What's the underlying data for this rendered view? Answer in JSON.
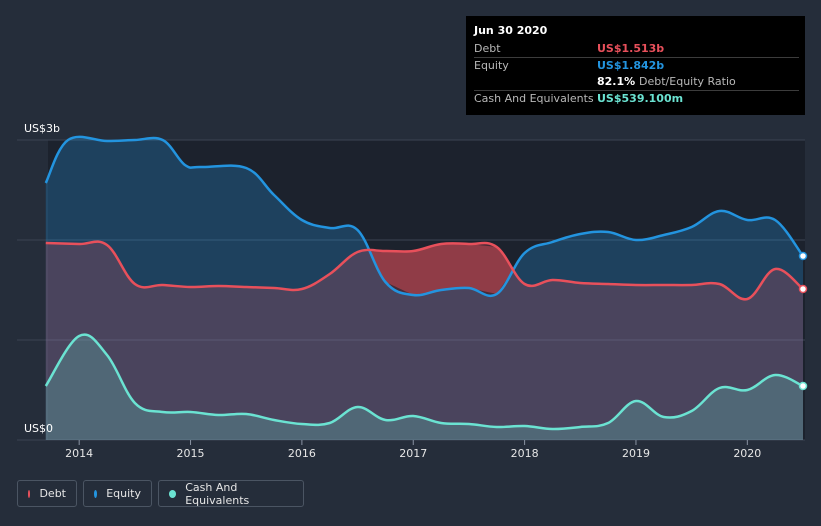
{
  "tooltip": {
    "date": "Jun 30 2020",
    "debt_label": "Debt",
    "debt_value": "US$1.513b",
    "equity_label": "Equity",
    "equity_value": "US$1.842b",
    "ratio_value": "82.1%",
    "ratio_label": "Debt/Equity Ratio",
    "cash_label": "Cash And Equivalents",
    "cash_value": "US$539.100m"
  },
  "legend": {
    "debt": "Debt",
    "equity": "Equity",
    "cash": "Cash And Equivalents"
  },
  "colors": {
    "debt": "#e8505b",
    "equity": "#2394df",
    "cash": "#6be3d2",
    "background": "#252d3a",
    "grid": "#3b4453"
  },
  "chart_data": {
    "type": "area",
    "ylabel_top": "US$3b",
    "ylabel_bottom": "US$0",
    "ylim": [
      0,
      3
    ],
    "y_unit": "US$ billions",
    "xlim": [
      2013.7,
      2020.5
    ],
    "x_ticks": [
      "2014",
      "2015",
      "2016",
      "2017",
      "2018",
      "2019",
      "2020"
    ],
    "x_tick_values": [
      2014,
      2015,
      2016,
      2017,
      2018,
      2019,
      2020
    ],
    "series": [
      {
        "name": "Equity",
        "x": [
          2013.7,
          2013.9,
          2014.25,
          2014.5,
          2014.75,
          2014.95,
          2015.1,
          2015.5,
          2015.75,
          2016.0,
          2016.25,
          2016.5,
          2016.75,
          2017.0,
          2017.25,
          2017.5,
          2017.75,
          2018.0,
          2018.25,
          2018.5,
          2018.75,
          2019.0,
          2019.25,
          2019.5,
          2019.75,
          2020.0,
          2020.25,
          2020.5
        ],
        "values": [
          2.57,
          3.0,
          2.99,
          3.0,
          3.0,
          2.75,
          2.73,
          2.72,
          2.45,
          2.2,
          2.12,
          2.1,
          1.58,
          1.45,
          1.5,
          1.52,
          1.46,
          1.87,
          1.98,
          2.06,
          2.08,
          2.0,
          2.05,
          2.13,
          2.29,
          2.2,
          2.2,
          1.84
        ]
      },
      {
        "name": "Debt",
        "x": [
          2013.7,
          2014.0,
          2014.25,
          2014.5,
          2014.75,
          2015.0,
          2015.25,
          2015.5,
          2015.75,
          2016.0,
          2016.25,
          2016.5,
          2016.75,
          2017.0,
          2017.25,
          2017.5,
          2017.75,
          2018.0,
          2018.25,
          2018.5,
          2018.75,
          2019.0,
          2019.25,
          2019.5,
          2019.75,
          2020.0,
          2020.25,
          2020.5
        ],
        "values": [
          1.97,
          1.96,
          1.95,
          1.56,
          1.55,
          1.53,
          1.54,
          1.53,
          1.52,
          1.51,
          1.66,
          1.88,
          1.89,
          1.89,
          1.96,
          1.96,
          1.93,
          1.56,
          1.6,
          1.57,
          1.56,
          1.55,
          1.55,
          1.55,
          1.56,
          1.41,
          1.71,
          1.51
        ]
      },
      {
        "name": "Cash And Equivalents",
        "x": [
          2013.7,
          2014.0,
          2014.25,
          2014.5,
          2014.75,
          2015.0,
          2015.25,
          2015.5,
          2015.75,
          2016.0,
          2016.25,
          2016.5,
          2016.75,
          2017.0,
          2017.25,
          2017.5,
          2017.75,
          2018.0,
          2018.25,
          2018.5,
          2018.75,
          2019.0,
          2019.25,
          2019.5,
          2019.75,
          2020.0,
          2020.25,
          2020.5
        ],
        "values": [
          0.54,
          1.04,
          0.85,
          0.37,
          0.28,
          0.28,
          0.25,
          0.26,
          0.2,
          0.16,
          0.17,
          0.33,
          0.2,
          0.24,
          0.17,
          0.16,
          0.13,
          0.14,
          0.11,
          0.13,
          0.17,
          0.39,
          0.23,
          0.29,
          0.52,
          0.5,
          0.65,
          0.54
        ]
      }
    ]
  }
}
